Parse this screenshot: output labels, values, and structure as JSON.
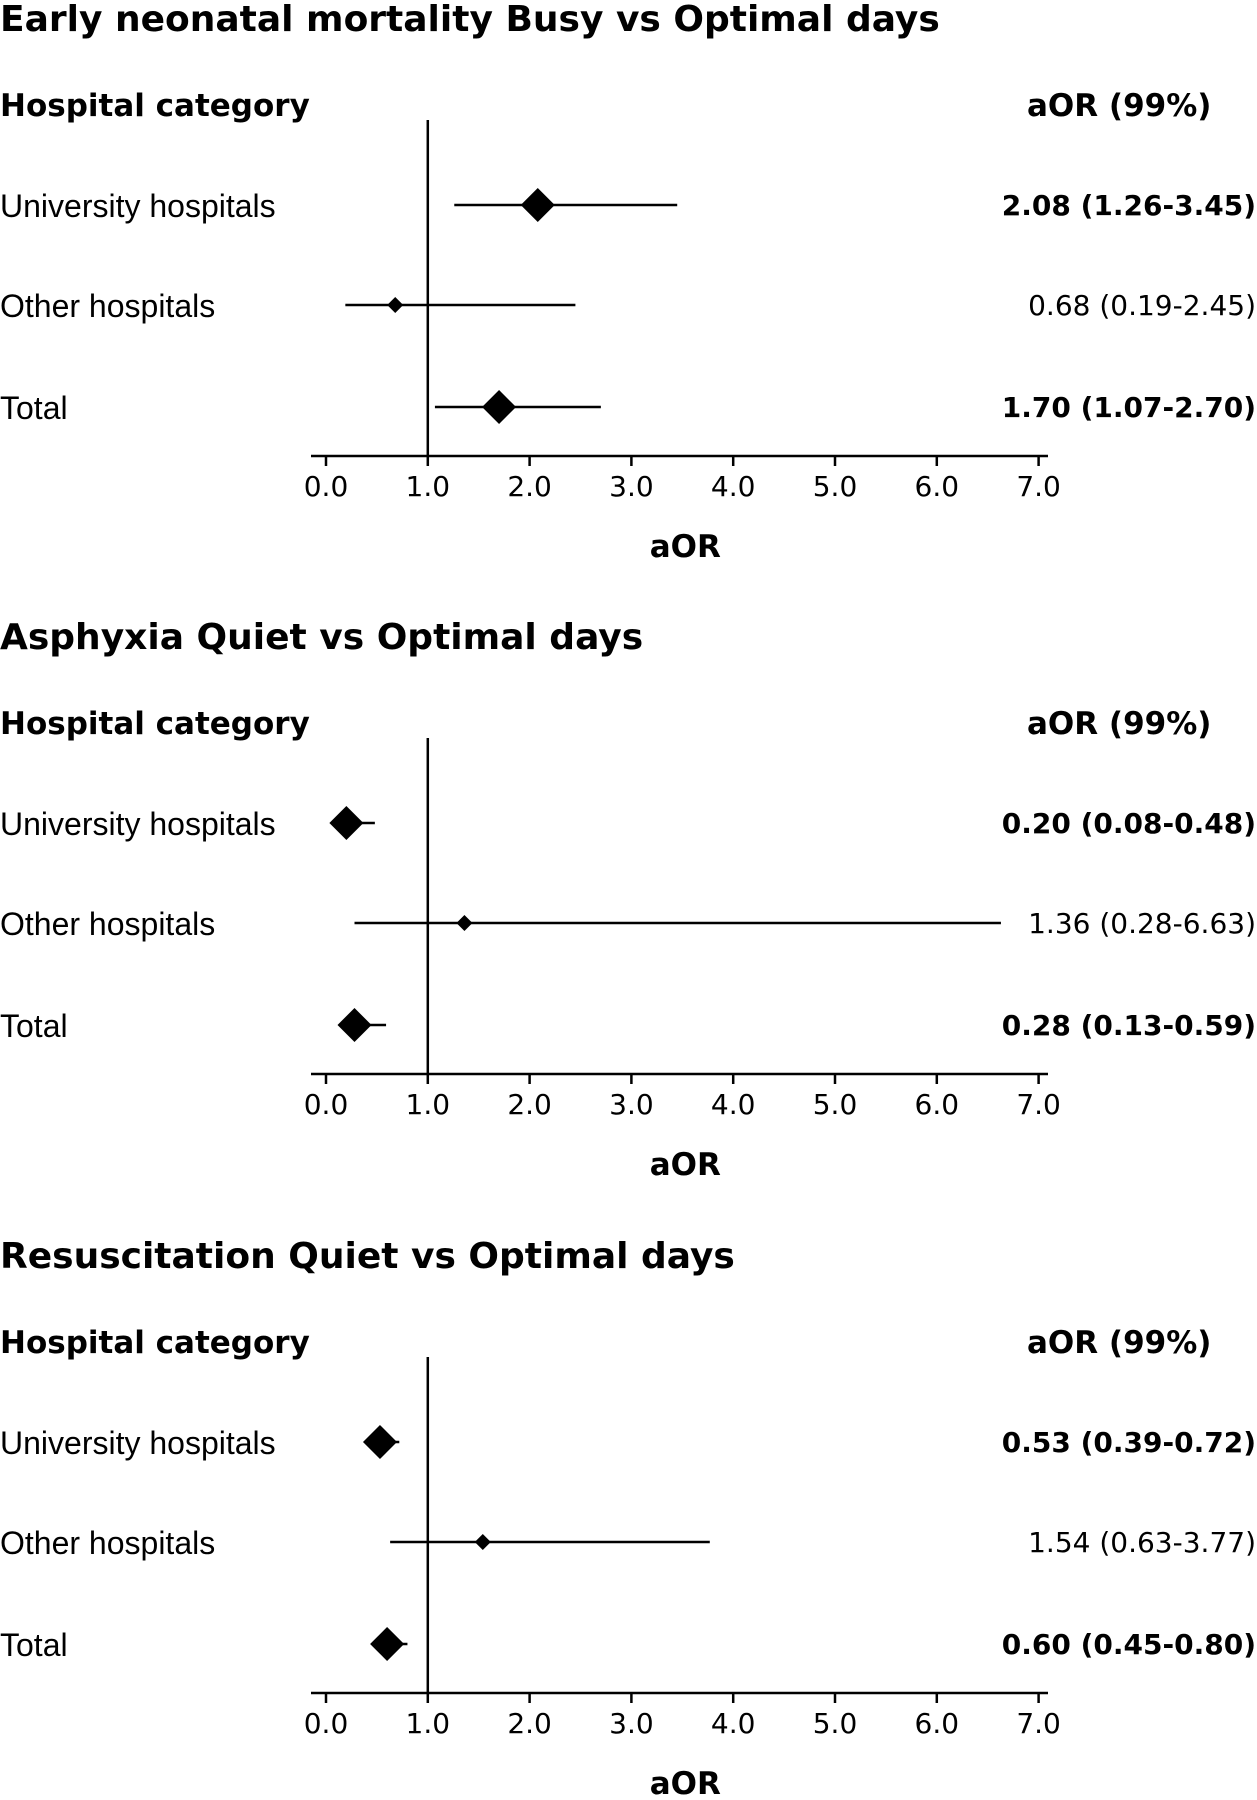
{
  "chart_data": [
    {
      "type": "forest",
      "title": "Early neonatal mortality Busy vs Optimal days",
      "row_header": "Hospital category",
      "value_header": "aOR (99%)",
      "xlabel": "aOR",
      "xlim": [
        0,
        7
      ],
      "reference_line": 1.0,
      "x_ticks": [
        "0.0",
        "1.0",
        "2.0",
        "3.0",
        "4.0",
        "5.0",
        "6.0",
        "7.0"
      ],
      "rows": [
        {
          "label": "University hospitals",
          "estimate": 2.08,
          "lower": 1.26,
          "upper": 3.45,
          "text": "2.08 (1.26-3.45)",
          "significant": true
        },
        {
          "label": "Other hospitals",
          "estimate": 0.68,
          "lower": 0.19,
          "upper": 2.45,
          "text": "0.68 (0.19-2.45)",
          "significant": false
        },
        {
          "label": "Total",
          "estimate": 1.7,
          "lower": 1.07,
          "upper": 2.7,
          "text": "1.70 (1.07-2.70)",
          "significant": true
        }
      ]
    },
    {
      "type": "forest",
      "title": "Asphyxia Quiet vs Optimal days",
      "row_header": "Hospital category",
      "value_header": "aOR (99%)",
      "xlabel": "aOR",
      "xlim": [
        0,
        7
      ],
      "reference_line": 1.0,
      "x_ticks": [
        "0.0",
        "1.0",
        "2.0",
        "3.0",
        "4.0",
        "5.0",
        "6.0",
        "7.0"
      ],
      "rows": [
        {
          "label": "University hospitals",
          "estimate": 0.2,
          "lower": 0.08,
          "upper": 0.48,
          "text": "0.20 (0.08-0.48)",
          "significant": true
        },
        {
          "label": "Other hospitals",
          "estimate": 1.36,
          "lower": 0.28,
          "upper": 6.63,
          "text": "1.36 (0.28-6.63)",
          "significant": false
        },
        {
          "label": "Total",
          "estimate": 0.28,
          "lower": 0.13,
          "upper": 0.59,
          "text": "0.28 (0.13-0.59)",
          "significant": true
        }
      ]
    },
    {
      "type": "forest",
      "title": "Resuscitation Quiet vs Optimal days",
      "row_header": "Hospital category",
      "value_header": "aOR (99%)",
      "xlabel": "aOR",
      "xlim": [
        0,
        7
      ],
      "reference_line": 1.0,
      "x_ticks": [
        "0.0",
        "1.0",
        "2.0",
        "3.0",
        "4.0",
        "5.0",
        "6.0",
        "7.0"
      ],
      "rows": [
        {
          "label": "University hospitals",
          "estimate": 0.53,
          "lower": 0.39,
          "upper": 0.72,
          "text": "0.53 (0.39-0.72)",
          "significant": true
        },
        {
          "label": "Other hospitals",
          "estimate": 1.54,
          "lower": 0.63,
          "upper": 3.77,
          "text": "1.54 (0.63-3.77)",
          "significant": false
        },
        {
          "label": "Total",
          "estimate": 0.6,
          "lower": 0.45,
          "upper": 0.8,
          "text": "0.60 (0.45-0.80)",
          "significant": true
        }
      ]
    }
  ]
}
